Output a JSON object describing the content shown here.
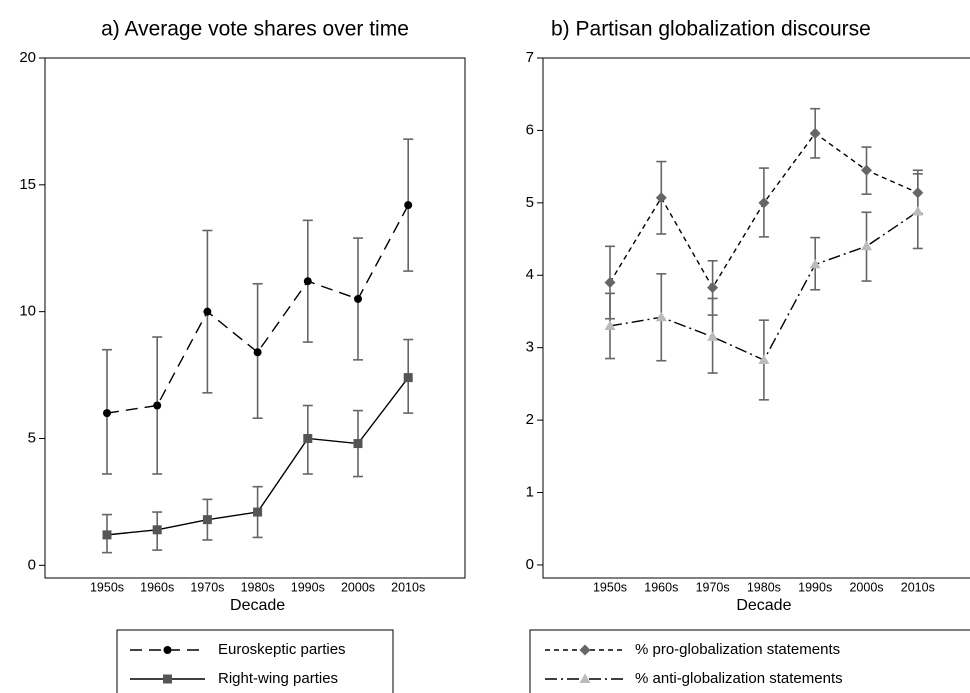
{
  "chart_data": [
    {
      "type": "line",
      "title": "a) Average vote shares over time",
      "xlabel": "Decade",
      "categories": [
        "1950s",
        "1960s",
        "1970s",
        "1980s",
        "1990s",
        "2000s",
        "2010s"
      ],
      "ylim": [
        -0.5,
        20
      ],
      "yticks": [
        0,
        5,
        10,
        15,
        20
      ],
      "series": [
        {
          "name": "Euroskeptic parties",
          "color": "#000000",
          "marker": "circle",
          "dash": "12,7",
          "values": [
            6.0,
            6.3,
            10.0,
            8.4,
            11.2,
            10.5,
            14.2
          ],
          "ci_low": [
            3.6,
            3.6,
            6.8,
            5.8,
            8.8,
            8.1,
            11.6
          ],
          "ci_high": [
            8.5,
            9.0,
            13.2,
            11.1,
            13.6,
            12.9,
            16.8
          ]
        },
        {
          "name": "Right-wing parties",
          "color": "#555555",
          "marker": "square",
          "dash": "none",
          "values": [
            1.2,
            1.4,
            1.8,
            2.1,
            5.0,
            4.8,
            7.4
          ],
          "ci_low": [
            0.5,
            0.6,
            1.0,
            1.1,
            3.6,
            3.5,
            6.0
          ],
          "ci_high": [
            2.0,
            2.1,
            2.6,
            3.1,
            6.3,
            6.1,
            8.9
          ]
        }
      ]
    },
    {
      "type": "line",
      "title": "b) Partisan globalization discourse",
      "xlabel": "Decade",
      "categories": [
        "1950s",
        "1960s",
        "1970s",
        "1980s",
        "1990s",
        "2000s",
        "2010s"
      ],
      "ylim": [
        -0.18,
        7
      ],
      "yticks": [
        0,
        1,
        2,
        3,
        4,
        5,
        6,
        7
      ],
      "series": [
        {
          "name": "% pro-globalization statements",
          "color": "#666666",
          "marker": "diamond",
          "dash": "5,4",
          "values": [
            3.9,
            5.07,
            3.83,
            5.0,
            5.96,
            5.45,
            5.14
          ],
          "ci_low": [
            3.4,
            4.57,
            3.45,
            4.53,
            5.62,
            5.12,
            4.85
          ],
          "ci_high": [
            4.4,
            5.57,
            4.2,
            5.48,
            6.3,
            5.77,
            5.45
          ]
        },
        {
          "name": "% anti-globalization statements",
          "color": "#bbbbbb",
          "marker": "triangle",
          "dash": "12,4,2,4",
          "values": [
            3.3,
            3.42,
            3.15,
            2.83,
            4.15,
            4.4,
            4.88
          ],
          "ci_low": [
            2.85,
            2.82,
            2.65,
            2.28,
            3.8,
            3.92,
            4.37
          ],
          "ci_high": [
            3.75,
            4.02,
            3.68,
            3.38,
            4.52,
            4.87,
            5.4
          ]
        }
      ]
    }
  ]
}
